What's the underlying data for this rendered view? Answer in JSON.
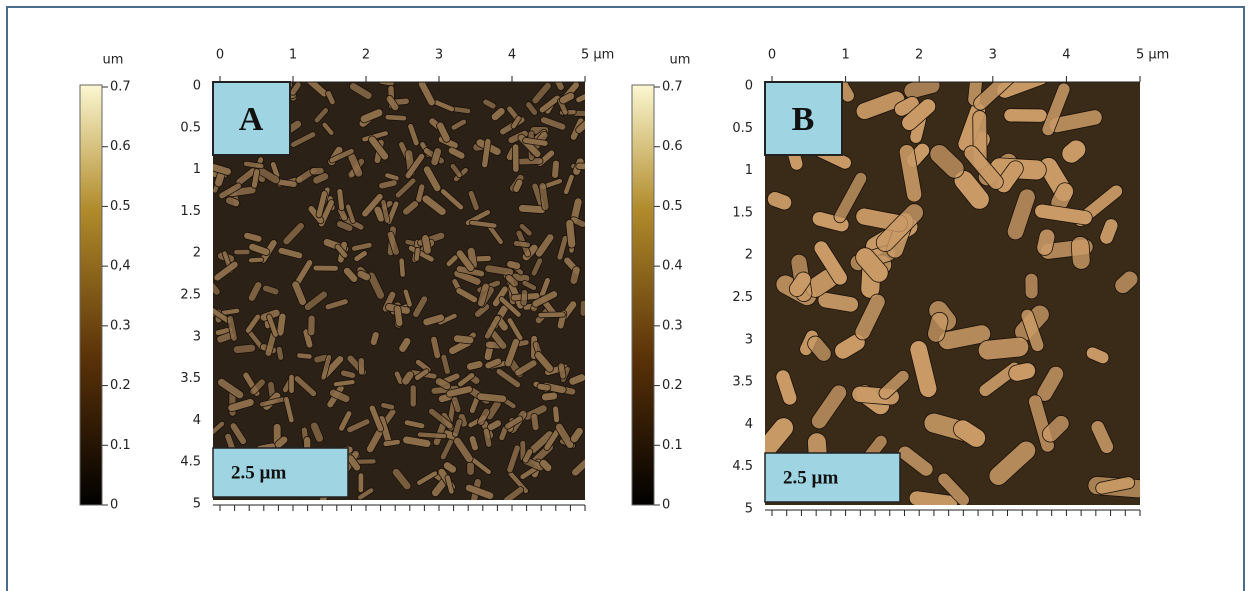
{
  "panels": [
    {
      "label": "A",
      "scale_bar": "2.5 µm",
      "colorbar_unit": "um",
      "colorbar_ticks": [
        "0",
        "0.1",
        "0.2",
        "0.3",
        "0,4",
        "0.5",
        "0.6",
        "0.7"
      ],
      "x_ticks": [
        "0",
        "1",
        "2",
        "3",
        "4",
        "5 µm"
      ],
      "y_ticks": [
        "0",
        "0.5",
        "1",
        "1.5",
        "2",
        "2.5",
        "3",
        "3.5",
        "4",
        "4.5",
        "5"
      ]
    },
    {
      "label": "B",
      "scale_bar": "2.5 µm",
      "colorbar_unit": "um",
      "colorbar_ticks": [
        "0",
        "0.1",
        "0.2",
        "0.3",
        "0.4",
        "0.5",
        "0.6",
        "0.7"
      ],
      "x_ticks": [
        "0",
        "1",
        "2",
        "3",
        "4",
        "5 µm"
      ],
      "y_ticks": [
        "0",
        "0.5",
        "1",
        "1.5",
        "2",
        "2.5",
        "3",
        "3.5",
        "4",
        "4.5",
        "5"
      ]
    }
  ]
}
